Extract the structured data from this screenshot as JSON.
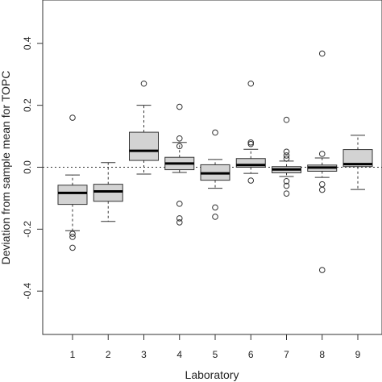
{
  "chart_data": {
    "type": "boxplot",
    "xlabel": "Laboratory",
    "ylabel": "Deviation from sample mean for TOPC",
    "ylim": [
      -0.54,
      0.54
    ],
    "yticks": [
      -0.4,
      -0.2,
      0.0,
      0.2,
      0.4
    ],
    "ytick_labels": [
      "-0.4",
      "-0.2",
      "0.0",
      "0.2",
      "0.4"
    ],
    "categories": [
      "1",
      "2",
      "3",
      "4",
      "5",
      "6",
      "7",
      "8",
      "9"
    ],
    "reference_line": 0.0,
    "box_color": "#d3d3d3",
    "boxes": [
      {
        "category": "1",
        "whisker_low": -0.205,
        "q1": -0.12,
        "median": -0.083,
        "q3": -0.058,
        "whisker_high": -0.025,
        "outliers": [
          0.16,
          -0.215,
          -0.225,
          -0.26
        ]
      },
      {
        "category": "2",
        "whisker_low": -0.175,
        "q1": -0.11,
        "median": -0.078,
        "q3": -0.055,
        "whisker_high": 0.015,
        "outliers": []
      },
      {
        "category": "3",
        "whisker_low": -0.022,
        "q1": 0.022,
        "median": 0.053,
        "q3": 0.113,
        "whisker_high": 0.2,
        "outliers": [
          0.27
        ]
      },
      {
        "category": "4",
        "whisker_low": -0.017,
        "q1": -0.008,
        "median": 0.012,
        "q3": 0.032,
        "whisker_high": 0.08,
        "outliers": [
          0.195,
          0.093,
          0.068,
          -0.118,
          -0.165,
          -0.178
        ]
      },
      {
        "category": "5",
        "whisker_low": -0.068,
        "q1": -0.042,
        "median": -0.02,
        "q3": 0.008,
        "whisker_high": 0.025,
        "outliers": [
          0.112,
          -0.13,
          -0.16
        ]
      },
      {
        "category": "6",
        "whisker_low": -0.02,
        "q1": 0.0,
        "median": 0.007,
        "q3": 0.028,
        "whisker_high": 0.058,
        "outliers": [
          0.27,
          0.08,
          0.075,
          -0.043
        ]
      },
      {
        "category": "7",
        "whisker_low": -0.03,
        "q1": -0.018,
        "median": -0.007,
        "q3": 0.002,
        "whisker_high": 0.02,
        "outliers": [
          0.153,
          0.05,
          0.038,
          0.028,
          -0.045,
          -0.06,
          -0.085
        ]
      },
      {
        "category": "8",
        "whisker_low": -0.033,
        "q1": -0.013,
        "median": -0.001,
        "q3": 0.007,
        "whisker_high": 0.03,
        "outliers": [
          0.367,
          0.043,
          -0.055,
          -0.073,
          -0.332
        ]
      },
      {
        "category": "9",
        "whisker_low": -0.072,
        "q1": 0.002,
        "median": 0.01,
        "q3": 0.057,
        "whisker_high": 0.103,
        "outliers": []
      }
    ]
  }
}
